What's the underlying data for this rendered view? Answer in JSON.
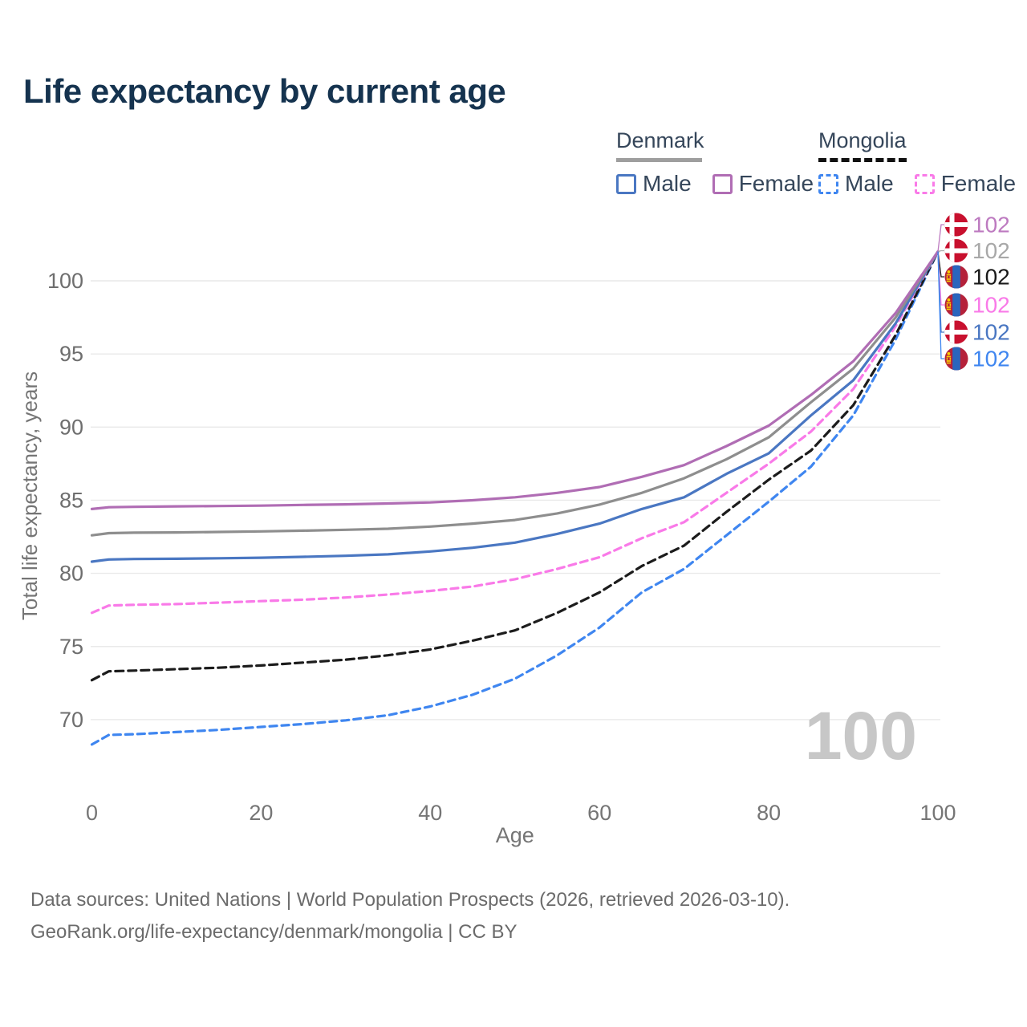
{
  "header": {
    "title": "Life expectancy by current age"
  },
  "legend": {
    "groups": [
      {
        "country": "Denmark",
        "underline_style": "solid",
        "underline_color": "#9e9e9e",
        "items": [
          {
            "label": "Male",
            "box_color": "#4a77c2",
            "box_style": "solid"
          },
          {
            "label": "Female",
            "box_color": "#b06db4",
            "box_style": "solid"
          }
        ]
      },
      {
        "country": "Mongolia",
        "underline_style": "dashed",
        "underline_color": "#111111",
        "items": [
          {
            "label": "Male",
            "box_color": "#3f86f0",
            "box_style": "dashed"
          },
          {
            "label": "Female",
            "box_color": "#f97ae8",
            "box_style": "dashed"
          }
        ]
      }
    ]
  },
  "chart_data": {
    "type": "line",
    "title": "Life expectancy by current age",
    "xlabel": "Age",
    "ylabel": "Total life expectancy, years",
    "watermark": "100",
    "xlim": [
      0,
      100
    ],
    "ylim": [
      66.5,
      103
    ],
    "xticks": [
      0,
      20,
      40,
      60,
      80,
      100
    ],
    "yticks": [
      70,
      75,
      80,
      85,
      90,
      95,
      100
    ],
    "grid": "horizontal",
    "legend_position": "top-right",
    "x": [
      0,
      2,
      5,
      10,
      15,
      20,
      25,
      30,
      35,
      40,
      45,
      50,
      55,
      60,
      65,
      70,
      75,
      80,
      85,
      90,
      95,
      100
    ],
    "series": [
      {
        "name": "Mongolia Male",
        "country": "Mongolia",
        "sex": "Male",
        "color": "#3f86f0",
        "dash": "9 6",
        "values": [
          68.3,
          68.95,
          69.0,
          69.15,
          69.3,
          69.5,
          69.7,
          69.95,
          70.3,
          70.9,
          71.7,
          72.8,
          74.4,
          76.3,
          78.7,
          80.3,
          82.6,
          84.9,
          87.3,
          90.8,
          96.0,
          102
        ]
      },
      {
        "name": "Mongolia Both sexes",
        "country": "Mongolia",
        "sex": "Both",
        "color": "#1c1c1c",
        "dash": "10 6",
        "values": [
          72.7,
          73.3,
          73.35,
          73.45,
          73.55,
          73.7,
          73.9,
          74.1,
          74.4,
          74.8,
          75.4,
          76.1,
          77.3,
          78.7,
          80.5,
          81.9,
          84.2,
          86.4,
          88.4,
          91.5,
          96.3,
          102
        ]
      },
      {
        "name": "Mongolia Female",
        "country": "Mongolia",
        "sex": "Female",
        "color": "#f97ae8",
        "dash": "9 6",
        "values": [
          77.3,
          77.8,
          77.85,
          77.9,
          78.0,
          78.1,
          78.2,
          78.35,
          78.55,
          78.8,
          79.1,
          79.6,
          80.3,
          81.1,
          82.4,
          83.5,
          85.5,
          87.5,
          89.7,
          92.6,
          96.9,
          102
        ]
      },
      {
        "name": "Denmark Male",
        "country": "Denmark",
        "sex": "Male",
        "color": "#4a77c2",
        "dash": null,
        "values": [
          80.8,
          80.95,
          80.98,
          81.0,
          81.03,
          81.07,
          81.13,
          81.2,
          81.3,
          81.5,
          81.75,
          82.1,
          82.7,
          83.4,
          84.4,
          85.2,
          86.8,
          88.2,
          90.8,
          93.2,
          97.1,
          102
        ]
      },
      {
        "name": "Denmark Both sexes",
        "country": "Denmark",
        "sex": "Both",
        "color": "#8e8e8e",
        "dash": null,
        "values": [
          82.6,
          82.75,
          82.78,
          82.8,
          82.83,
          82.87,
          82.92,
          82.98,
          83.05,
          83.2,
          83.4,
          83.65,
          84.1,
          84.7,
          85.5,
          86.5,
          87.8,
          89.3,
          91.7,
          94.0,
          97.5,
          102
        ]
      },
      {
        "name": "Denmark Female",
        "country": "Denmark",
        "sex": "Female",
        "color": "#b06db4",
        "dash": null,
        "values": [
          84.4,
          84.52,
          84.55,
          84.58,
          84.6,
          84.63,
          84.68,
          84.72,
          84.78,
          84.85,
          85.0,
          85.2,
          85.5,
          85.9,
          86.6,
          87.4,
          88.7,
          90.1,
          92.2,
          94.5,
          97.8,
          102
        ]
      }
    ],
    "end_labels": [
      {
        "flag": "denmark",
        "value": "102",
        "color": "#bd7ac0"
      },
      {
        "flag": "denmark",
        "value": "102",
        "color": "#a8a8a8"
      },
      {
        "flag": "mongolia",
        "value": "102",
        "color": "#1a1a1a"
      },
      {
        "flag": "mongolia",
        "value": "102",
        "color": "#f97ae8"
      },
      {
        "flag": "denmark",
        "value": "102",
        "color": "#4a77c2"
      },
      {
        "flag": "mongolia",
        "value": "102",
        "color": "#3f86f0"
      }
    ]
  },
  "footer": {
    "line1": "Data sources: United Nations | World Population Prospects (2026, retrieved 2026-03-10).",
    "line2": "GeoRank.org/life-expectancy/denmark/mongolia | CC BY"
  }
}
